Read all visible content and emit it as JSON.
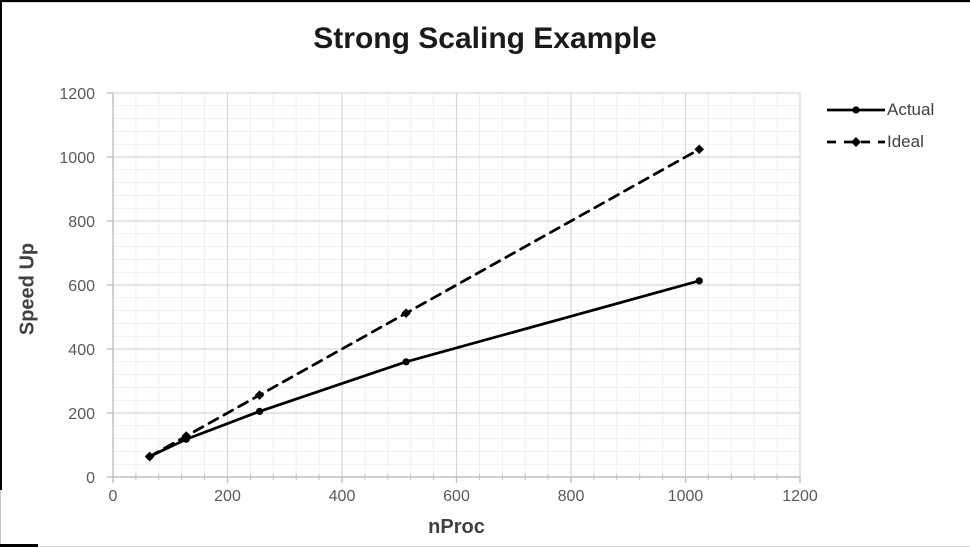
{
  "chart_data": {
    "type": "line",
    "title": "Strong Scaling Example",
    "xlabel": "nProc",
    "ylabel": "Speed Up",
    "x": [
      64,
      128,
      256,
      512,
      1024
    ],
    "series": [
      {
        "name": "Actual",
        "values": [
          64,
          118,
          205,
          360,
          613
        ],
        "line_style": "solid",
        "marker": "circle",
        "color": "#000000"
      },
      {
        "name": "Ideal",
        "values": [
          64,
          128,
          256,
          512,
          1024
        ],
        "line_style": "dashed",
        "marker": "diamond",
        "color": "#000000"
      }
    ],
    "xlim": [
      0,
      1200
    ],
    "ylim": [
      0,
      1200
    ],
    "x_ticks": [
      0,
      200,
      400,
      600,
      800,
      1000,
      1200
    ],
    "y_ticks": [
      0,
      200,
      400,
      600,
      800,
      1000,
      1200
    ],
    "minor_unit": 40,
    "grid": "major+minor",
    "legend_position": "right",
    "colors": {
      "major_grid": "#d6d6d6",
      "minor_grid": "#efefef",
      "axis_line": "#bfbfbf",
      "tick_label": "#595959",
      "axis_title": "#404040",
      "title": "#1a1a1a",
      "legend_text": "#404040"
    }
  }
}
